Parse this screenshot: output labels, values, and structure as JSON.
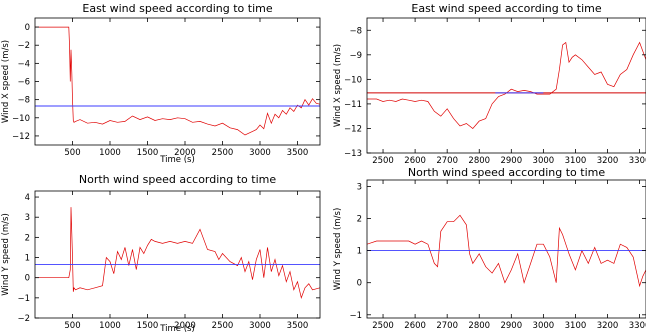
{
  "chart_data": [
    {
      "id": "east-full",
      "type": "line",
      "title": "East wind speed according to time",
      "xlabel": "Time (s)",
      "ylabel": "Wind X speed (m/s)",
      "xlim": [
        0,
        3800
      ],
      "ylim": [
        -13,
        1
      ],
      "xticks": [
        500,
        1000,
        1500,
        2000,
        2500,
        3000,
        3500
      ],
      "yticks": [
        -12,
        -10,
        -8,
        -6,
        -4,
        -2,
        0
      ],
      "colors": {
        "series": "#e00000",
        "reference": "#3b3bff"
      },
      "reference_lines": [
        {
          "y": -8.7,
          "color": "#3b3bff"
        }
      ],
      "series": [
        {
          "x": [
            0,
            450,
            460,
            470,
            480,
            490,
            500,
            510,
            520,
            540,
            600,
            700,
            800,
            900,
            1000,
            1100,
            1200,
            1300,
            1400,
            1500,
            1600,
            1700,
            1800,
            1900,
            2000,
            2100,
            2200,
            2300,
            2400,
            2500,
            2600,
            2700,
            2800,
            2900,
            2950,
            3000,
            3050,
            3100,
            3150,
            3200,
            3250,
            3300,
            3350,
            3400,
            3450,
            3500,
            3550,
            3600,
            3650,
            3700,
            3750,
            3800
          ],
          "y": [
            0,
            0,
            -2,
            -6,
            -2.5,
            -5,
            -8,
            -10.3,
            -10.5,
            -10.4,
            -10.2,
            -10.6,
            -10.5,
            -10.7,
            -10.3,
            -10.5,
            -10.4,
            -9.8,
            -10.2,
            -9.9,
            -10.3,
            -10.1,
            -10.2,
            -10.0,
            -10.1,
            -10.5,
            -10.4,
            -10.7,
            -10.9,
            -10.6,
            -11.1,
            -11.3,
            -11.9,
            -11.5,
            -11.3,
            -10.8,
            -11.2,
            -9.5,
            -10.6,
            -9.6,
            -10.0,
            -9.2,
            -9.6,
            -8.9,
            -9.3,
            -8.6,
            -8.9,
            -8.0,
            -8.6,
            -7.9,
            -8.4,
            -8.5
          ]
        }
      ]
    },
    {
      "id": "east-zoom",
      "type": "line",
      "title": "East wind speed according to time",
      "xlabel": "",
      "ylabel": "Wind X speed (m/s)",
      "xlim": [
        2450,
        3320
      ],
      "ylim": [
        -13,
        -7.5
      ],
      "xticks": [
        2500,
        2600,
        2700,
        2800,
        2900,
        3000,
        3100,
        3200,
        3300
      ],
      "yticks": [
        -13,
        -12,
        -11,
        -10,
        -9,
        -8
      ],
      "colors": {
        "series": "#e00000",
        "reference": "#3b3bff",
        "reference_red": "#d00000"
      },
      "reference_lines": [
        {
          "y": -10.55,
          "color": "#d00000"
        },
        {
          "y": -10.55,
          "color": "#3b3bff",
          "x_range": [
            2850,
            3000
          ]
        }
      ],
      "series": [
        {
          "x": [
            2450,
            2480,
            2500,
            2520,
            2540,
            2560,
            2580,
            2600,
            2620,
            2640,
            2660,
            2680,
            2700,
            2720,
            2740,
            2760,
            2780,
            2800,
            2820,
            2840,
            2860,
            2880,
            2900,
            2920,
            2940,
            2960,
            2980,
            3000,
            3020,
            3040,
            3050,
            3060,
            3070,
            3080,
            3090,
            3100,
            3120,
            3140,
            3160,
            3180,
            3200,
            3220,
            3240,
            3260,
            3280,
            3300,
            3320
          ],
          "y": [
            -10.8,
            -10.8,
            -10.9,
            -10.85,
            -10.9,
            -10.8,
            -10.85,
            -10.9,
            -10.85,
            -10.9,
            -11.3,
            -11.5,
            -11.2,
            -11.6,
            -11.9,
            -11.8,
            -12.0,
            -11.7,
            -11.6,
            -11.0,
            -10.7,
            -10.6,
            -10.4,
            -10.5,
            -10.45,
            -10.5,
            -10.6,
            -10.6,
            -10.6,
            -10.4,
            -9.6,
            -8.6,
            -8.5,
            -9.3,
            -9.1,
            -9.0,
            -9.2,
            -9.5,
            -9.8,
            -9.7,
            -10.2,
            -10.3,
            -9.8,
            -9.6,
            -9.0,
            -8.5,
            -9.2
          ]
        }
      ]
    },
    {
      "id": "north-full",
      "type": "line",
      "title": "North wind speed according to time",
      "xlabel": "Time (s)",
      "ylabel": "Wind Y speed (m/s)",
      "xlim": [
        0,
        3800
      ],
      "ylim": [
        -2,
        4.3
      ],
      "xticks": [
        500,
        1000,
        1500,
        2000,
        2500,
        3000,
        3500
      ],
      "yticks": [
        -2,
        -1,
        0,
        1,
        2,
        3,
        4
      ],
      "colors": {
        "series": "#e00000",
        "reference": "#3b3bff"
      },
      "reference_lines": [
        {
          "y": 0.65,
          "color": "#3b3bff"
        }
      ],
      "series": [
        {
          "x": [
            0,
            450,
            470,
            480,
            490,
            500,
            510,
            520,
            540,
            600,
            700,
            800,
            900,
            950,
            1000,
            1050,
            1100,
            1150,
            1200,
            1250,
            1300,
            1350,
            1400,
            1450,
            1500,
            1550,
            1600,
            1700,
            1800,
            1900,
            2000,
            2100,
            2200,
            2300,
            2400,
            2450,
            2500,
            2600,
            2700,
            2750,
            2800,
            2850,
            2900,
            2950,
            3000,
            3050,
            3100,
            3150,
            3200,
            3250,
            3300,
            3350,
            3400,
            3450,
            3500,
            3550,
            3600,
            3650,
            3700,
            3800
          ],
          "y": [
            0,
            0,
            0.4,
            3.5,
            2.2,
            1.0,
            -0.7,
            -0.5,
            -0.6,
            -0.5,
            -0.6,
            -0.5,
            -0.4,
            1.0,
            0.8,
            0.2,
            1.3,
            0.9,
            1.5,
            0.6,
            1.4,
            0.4,
            1.5,
            1.2,
            1.6,
            1.9,
            1.8,
            1.7,
            1.8,
            1.7,
            1.8,
            1.7,
            2.4,
            1.4,
            1.3,
            0.9,
            1.2,
            0.8,
            0.6,
            1.0,
            0.3,
            0.8,
            -0.1,
            0.9,
            1.4,
            0.0,
            1.5,
            0.3,
            0.9,
            0.1,
            0.6,
            -0.2,
            0.3,
            -0.6,
            -0.2,
            -1.0,
            -0.5,
            -0.3,
            -0.6,
            -0.5
          ]
        }
      ]
    },
    {
      "id": "north-zoom",
      "type": "line",
      "title": "North wind speed according to time",
      "xlabel": "",
      "ylabel": "Wind Y speed (m/s)",
      "xlim": [
        2450,
        3320
      ],
      "ylim": [
        -1.1,
        3.2
      ],
      "xticks": [
        2500,
        2600,
        2700,
        2800,
        2900,
        3000,
        3100,
        3200,
        3300
      ],
      "yticks": [
        -1,
        0,
        1,
        2,
        3
      ],
      "colors": {
        "series": "#e00000",
        "reference": "#3b3bff"
      },
      "reference_lines": [
        {
          "y": 1.0,
          "color": "#3b3bff"
        }
      ],
      "series": [
        {
          "x": [
            2450,
            2480,
            2500,
            2520,
            2540,
            2560,
            2580,
            2600,
            2620,
            2640,
            2660,
            2670,
            2680,
            2700,
            2720,
            2740,
            2760,
            2770,
            2780,
            2800,
            2820,
            2840,
            2860,
            2880,
            2900,
            2920,
            2940,
            2960,
            2980,
            3000,
            3020,
            3040,
            3050,
            3060,
            3080,
            3100,
            3120,
            3140,
            3160,
            3180,
            3200,
            3220,
            3240,
            3260,
            3280,
            3300,
            3310,
            3320
          ],
          "y": [
            1.2,
            1.3,
            1.3,
            1.3,
            1.3,
            1.3,
            1.3,
            1.2,
            1.3,
            1.2,
            0.6,
            0.5,
            1.6,
            1.9,
            1.9,
            2.1,
            1.8,
            0.9,
            0.6,
            0.9,
            0.5,
            0.3,
            0.6,
            0.0,
            0.4,
            0.9,
            0.0,
            0.6,
            1.2,
            1.2,
            0.8,
            0.0,
            1.7,
            1.5,
            0.9,
            0.4,
            1.0,
            0.6,
            1.1,
            0.6,
            0.7,
            0.6,
            1.2,
            1.1,
            0.8,
            -0.1,
            0.2,
            0.4
          ]
        }
      ]
    }
  ]
}
